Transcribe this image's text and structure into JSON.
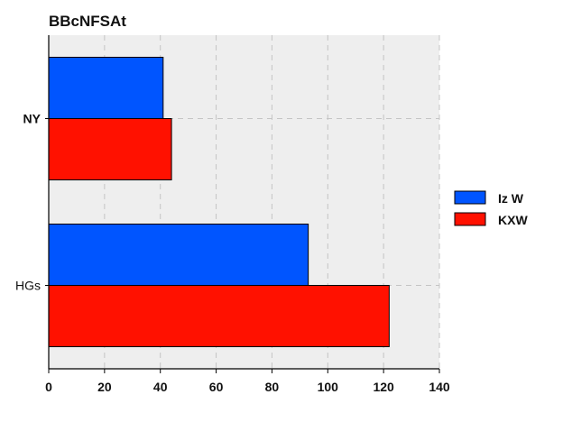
{
  "chart_data": {
    "type": "bar",
    "orientation": "horizontal",
    "title": "BBcNFSAt",
    "xlabel": "",
    "ylabel": "",
    "categories": [
      "NY",
      "HGs"
    ],
    "series": [
      {
        "name": "Iz W",
        "color": "#0055ff",
        "values": [
          41,
          93
        ]
      },
      {
        "name": "KXW",
        "color": "#ff1100",
        "values": [
          44,
          122
        ]
      }
    ],
    "xlim": [
      0,
      140
    ],
    "xticks": [
      0,
      20,
      40,
      60,
      80,
      100,
      120,
      140
    ],
    "grid": true,
    "legend_position": "right",
    "background_color": "#eeeeee"
  }
}
